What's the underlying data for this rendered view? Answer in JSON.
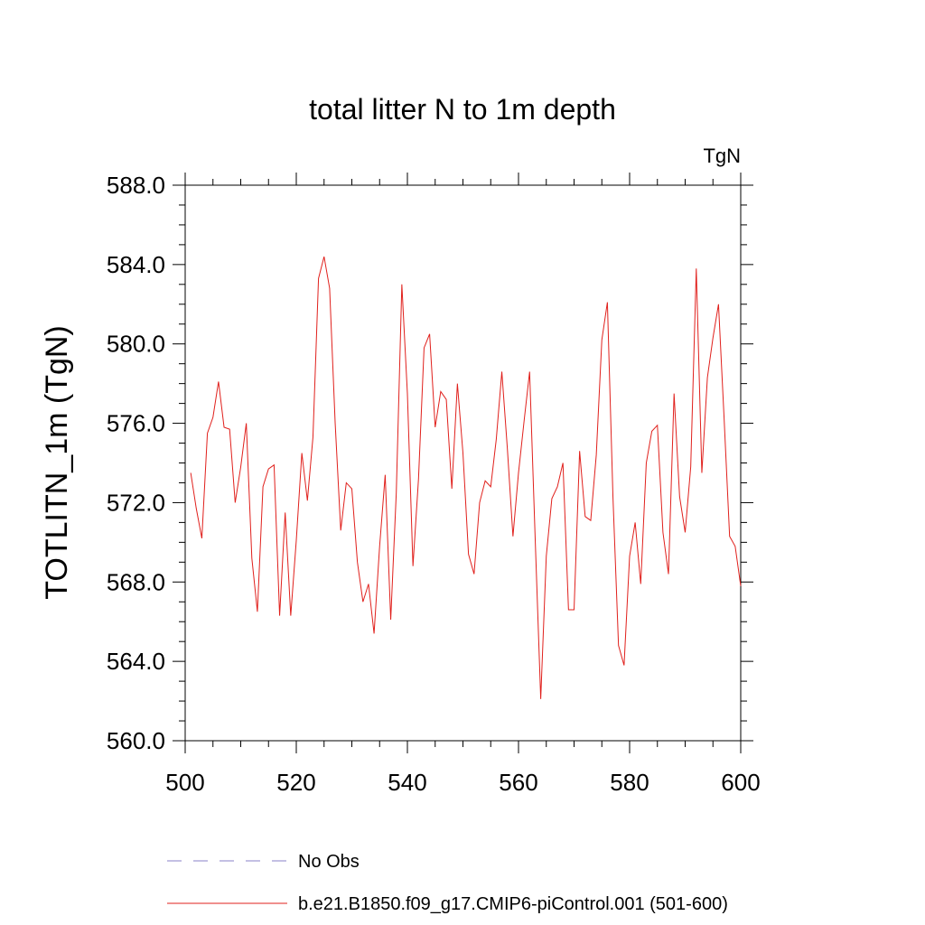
{
  "chart_data": {
    "type": "line",
    "title": "total litter N to 1m depth",
    "units_label": "TgN",
    "xlabel": "",
    "ylabel": "TOTLITN_1m  (TgN)",
    "xlim": [
      500,
      600
    ],
    "ylim": [
      560,
      588
    ],
    "x_ticks": [
      "500",
      "520",
      "540",
      "560",
      "580",
      "600"
    ],
    "y_ticks": [
      "560.0",
      "564.0",
      "568.0",
      "572.0",
      "576.0",
      "580.0",
      "584.0",
      "588.0"
    ],
    "grid": false,
    "legend_position": "bottom",
    "legend": [
      {
        "label": "No Obs",
        "style": "dashed",
        "color": "#8a82c8"
      },
      {
        "label": "b.e21.B1850.f09_g17.CMIP6-piControl.001 (501-600)",
        "style": "solid",
        "color": "#e0201c"
      }
    ],
    "series": [
      {
        "name": "b.e21.B1850.f09_g17.CMIP6-piControl.001 (501-600)",
        "color": "#e0201c",
        "x": [
          501,
          502,
          503,
          504,
          505,
          506,
          507,
          508,
          509,
          510,
          511,
          512,
          513,
          514,
          515,
          516,
          517,
          518,
          519,
          520,
          521,
          522,
          523,
          524,
          525,
          526,
          527,
          528,
          529,
          530,
          531,
          532,
          533,
          534,
          535,
          536,
          537,
          538,
          539,
          540,
          541,
          542,
          543,
          544,
          545,
          546,
          547,
          548,
          549,
          550,
          551,
          552,
          553,
          554,
          555,
          556,
          557,
          558,
          559,
          560,
          561,
          562,
          563,
          564,
          565,
          566,
          567,
          568,
          569,
          570,
          571,
          572,
          573,
          574,
          575,
          576,
          577,
          578,
          579,
          580,
          581,
          582,
          583,
          584,
          585,
          586,
          587,
          588,
          589,
          590,
          591,
          592,
          593,
          594,
          595,
          596,
          597,
          598,
          599,
          600
        ],
        "values": [
          573.5,
          571.7,
          570.2,
          575.5,
          576.3,
          578.1,
          575.8,
          575.7,
          572.0,
          573.8,
          576.0,
          569.2,
          566.5,
          572.8,
          573.7,
          573.9,
          566.3,
          571.5,
          566.3,
          570.1,
          574.5,
          572.1,
          575.3,
          583.3,
          584.4,
          582.8,
          576.0,
          570.6,
          573.0,
          572.7,
          569.0,
          567.0,
          567.9,
          565.4,
          569.8,
          573.4,
          566.1,
          572.5,
          583.0,
          577.5,
          568.8,
          573.2,
          579.8,
          580.5,
          575.8,
          577.6,
          577.2,
          572.7,
          578.0,
          574.5,
          569.4,
          568.4,
          572.0,
          573.1,
          572.8,
          575.2,
          578.6,
          574.7,
          570.3,
          573.5,
          576.1,
          578.6,
          570.2,
          562.1,
          569.3,
          572.2,
          572.8,
          574.0,
          566.6,
          566.6,
          574.6,
          571.3,
          571.1,
          574.4,
          580.2,
          582.1,
          572.3,
          564.8,
          563.8,
          569.3,
          571.0,
          567.9,
          574.0,
          575.6,
          575.9,
          570.5,
          568.4,
          577.5,
          572.3,
          570.5,
          573.8,
          583.8,
          573.5,
          578.3,
          580.3,
          582.0,
          576.3,
          570.3,
          569.8,
          567.8
        ]
      }
    ]
  }
}
